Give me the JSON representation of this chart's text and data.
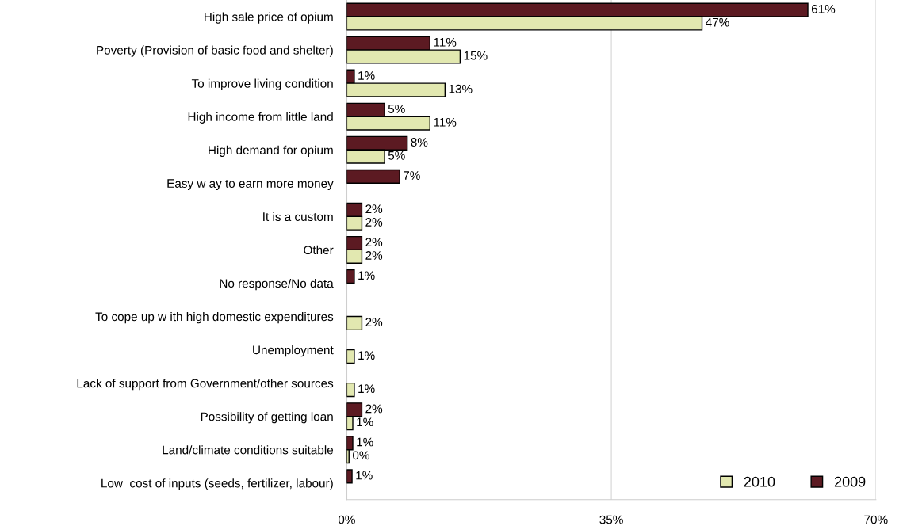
{
  "chart_data": {
    "type": "bar",
    "orientation": "horizontal",
    "categories": [
      "High sale price of opium",
      "Poverty (Provision of basic food and shelter)",
      "To improve living condition",
      "High income from little land",
      "High demand for opium",
      "Easy w ay to earn more money",
      "It is a custom",
      "Other",
      "No response/No data",
      "To cope up w ith high domestic expenditures",
      "Unemployment",
      "Lack of support from Government/other sources",
      "Possibility of getting loan",
      "Land/climate conditions suitable",
      "Low  cost of inputs (seeds, fertilizer, labour)"
    ],
    "series": [
      {
        "name": "2009",
        "color": "#5c1a22",
        "values": [
          61,
          11,
          1,
          5,
          8,
          7,
          2,
          2,
          1,
          null,
          null,
          null,
          2,
          0.8,
          0.7
        ],
        "value_labels": [
          "61%",
          "11%",
          "1%",
          "5%",
          "8%",
          "7%",
          "2%",
          "2%",
          "1%",
          null,
          null,
          null,
          "2%",
          "1%",
          "1%"
        ]
      },
      {
        "name": "2010",
        "color": "#e2e8b0",
        "values": [
          47,
          15,
          13,
          11,
          5,
          null,
          2,
          2,
          null,
          2,
          1,
          1,
          0.8,
          0.3,
          null
        ],
        "value_labels": [
          "47%",
          "15%",
          "13%",
          "11%",
          "5%",
          null,
          "2%",
          "2%",
          null,
          "2%",
          "1%",
          "1%",
          "1%",
          "0%",
          null
        ]
      }
    ],
    "xlim": [
      0,
      70
    ],
    "xticks": [
      {
        "value": 0,
        "label": "0%"
      },
      {
        "value": 35,
        "label": "35%"
      },
      {
        "value": 70,
        "label": "70%"
      }
    ],
    "grid": "x",
    "legend": "bottom right"
  }
}
